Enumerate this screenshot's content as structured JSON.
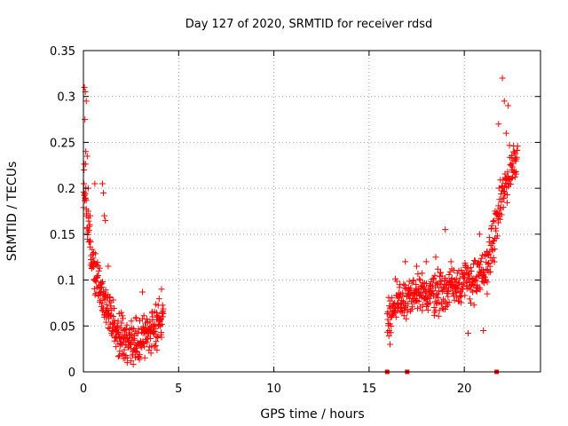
{
  "chart_data": {
    "type": "scatter",
    "title": "Day 127 of 2020, SRMTID for receiver rdsd",
    "xlabel": "GPS time / hours",
    "ylabel": "SRMTID / TECUs",
    "xlim": [
      0,
      24
    ],
    "ylim": [
      0,
      0.35
    ],
    "xticks": [
      0,
      5,
      10,
      15,
      20
    ],
    "xtick_labels": [
      "0",
      "5",
      "10",
      "15",
      "20"
    ],
    "yticks": [
      0,
      0.05,
      0.1,
      0.15,
      0.2,
      0.25,
      0.3,
      0.35
    ],
    "ytick_labels": [
      "0",
      "0.05",
      "0.1",
      "0.15",
      "0.2",
      "0.25",
      "0.3",
      "0.35"
    ],
    "grid": true,
    "marker": "plus",
    "series": [
      {
        "name": "SRMTID",
        "color": "#ff0000",
        "segments": [
          {
            "x_start": 0.0,
            "x_end": 4.2,
            "step": 0.012,
            "profile": [
              [
                0.0,
                0.19
              ],
              [
                0.1,
                0.21
              ],
              [
                0.2,
                0.16
              ],
              [
                0.4,
                0.13
              ],
              [
                0.7,
                0.1
              ],
              [
                1.0,
                0.085
              ],
              [
                1.2,
                0.07
              ],
              [
                1.6,
                0.05
              ],
              [
                2.0,
                0.038
              ],
              [
                2.5,
                0.028
              ],
              [
                3.0,
                0.035
              ],
              [
                3.5,
                0.045
              ],
              [
                4.2,
                0.06
              ]
            ],
            "spread": 0.022
          },
          {
            "x_start": 15.95,
            "x_end": 22.8,
            "step": 0.014,
            "profile": [
              [
                15.95,
                0.06
              ],
              [
                16.5,
                0.075
              ],
              [
                17.0,
                0.08
              ],
              [
                18.0,
                0.085
              ],
              [
                19.0,
                0.09
              ],
              [
                19.5,
                0.095
              ],
              [
                20.0,
                0.1
              ],
              [
                20.5,
                0.1
              ],
              [
                21.0,
                0.105
              ],
              [
                21.5,
                0.14
              ],
              [
                22.0,
                0.19
              ],
              [
                22.4,
                0.22
              ],
              [
                22.8,
                0.24
              ]
            ],
            "spread": 0.022
          }
        ],
        "points": [
          [
            0.05,
            0.31
          ],
          [
            0.1,
            0.305
          ],
          [
            0.15,
            0.295
          ],
          [
            0.08,
            0.275
          ],
          [
            0.12,
            0.24
          ],
          [
            0.2,
            0.235
          ],
          [
            0.03,
            0.22
          ],
          [
            0.25,
            0.2
          ],
          [
            0.35,
            0.17
          ],
          [
            0.6,
            0.205
          ],
          [
            1.0,
            0.205
          ],
          [
            1.05,
            0.195
          ],
          [
            1.1,
            0.17
          ],
          [
            1.15,
            0.165
          ],
          [
            1.3,
            0.115
          ],
          [
            2.3,
            0.01
          ],
          [
            2.5,
            0.012
          ],
          [
            3.1,
            0.087
          ],
          [
            4.1,
            0.09
          ],
          [
            22.0,
            0.32
          ],
          [
            22.1,
            0.295
          ],
          [
            22.3,
            0.29
          ],
          [
            21.8,
            0.27
          ],
          [
            22.2,
            0.26
          ],
          [
            22.5,
            0.22
          ],
          [
            16.1,
            0.03
          ],
          [
            16.05,
            0.045
          ],
          [
            21.0,
            0.045
          ],
          [
            20.2,
            0.042
          ],
          [
            19.0,
            0.155
          ],
          [
            19.3,
            0.12
          ],
          [
            18.5,
            0.125
          ],
          [
            20.8,
            0.15
          ],
          [
            21.2,
            0.085
          ],
          [
            16.9,
            0.12
          ],
          [
            17.5,
            0.115
          ],
          [
            18.0,
            0.12
          ]
        ]
      },
      {
        "name": "zero-level markers",
        "color": "#ff0000",
        "marker": "square",
        "points": [
          [
            15.95,
            0.0
          ],
          [
            17.0,
            0.0
          ],
          [
            21.7,
            0.0
          ]
        ]
      }
    ]
  }
}
